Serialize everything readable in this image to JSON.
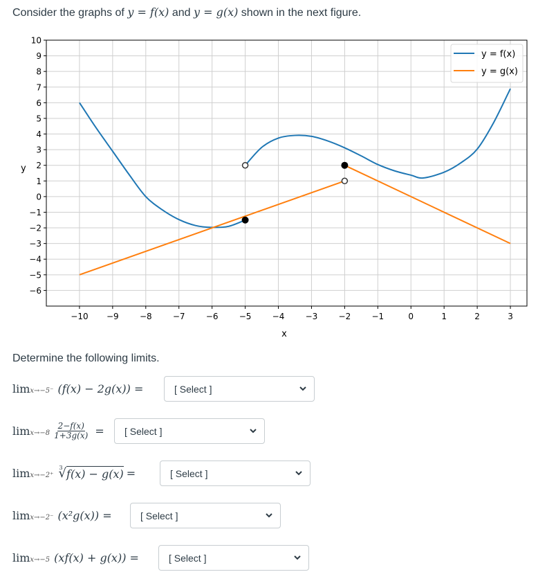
{
  "intro": {
    "prefix": "Consider the graphs of ",
    "eq1": "y = f(x)",
    "mid": " and ",
    "eq2": "y = g(x)",
    "suffix": " shown in the next figure."
  },
  "chart_data": {
    "type": "line",
    "title": "",
    "xlabel": "x",
    "ylabel": "y",
    "xlim": [
      -11,
      3.5
    ],
    "ylim": [
      -7,
      10
    ],
    "grid": true,
    "legend_position": "upper right",
    "x_ticks": [
      -10,
      -9,
      -8,
      -7,
      -6,
      -5,
      -4,
      -3,
      -2,
      -1,
      0,
      1,
      2,
      3
    ],
    "y_ticks": [
      10,
      9,
      8,
      7,
      6,
      5,
      4,
      3,
      2,
      1,
      0,
      -1,
      -2,
      -3,
      -4,
      -5,
      -6
    ],
    "x_tick_labels": [
      "−10",
      "−9",
      "−8",
      "−7",
      "−6",
      "−5",
      "−4",
      "−3",
      "−2",
      "−1",
      "0",
      "1",
      "2",
      "3"
    ],
    "y_tick_labels": [
      "10",
      "9",
      "8",
      "7",
      "6",
      "5",
      "4",
      "3",
      "2",
      "1",
      "0",
      "−1",
      "−2",
      "−3",
      "−4",
      "−5",
      "−6"
    ],
    "series": [
      {
        "name": "y = f(x)",
        "color": "#1f77b4",
        "pieces": [
          {
            "x": [
              -10,
              -9.5,
              -9,
              -8.5,
              -8,
              -7.5,
              -7,
              -6.5,
              -6,
              -5.5,
              -5
            ],
            "y": [
              6,
              4.4,
              2.9,
              1.4,
              0.0,
              -0.85,
              -1.47,
              -1.85,
              -1.97,
              -1.9,
              -1.5
            ]
          },
          {
            "x": [
              -5,
              -4.5,
              -4,
              -3.5,
              -3,
              -2.5,
              -2,
              -1.5,
              -1,
              -0.5,
              0,
              0.37,
              1,
              1.5,
              2,
              2.5,
              3
            ],
            "y": [
              2,
              3.15,
              3.74,
              3.91,
              3.85,
              3.55,
              3.12,
              2.6,
              2.05,
              1.65,
              1.37,
              1.19,
              1.56,
              2.15,
              3.04,
              4.75,
              6.9
            ]
          }
        ]
      },
      {
        "name": "y = g(x)",
        "color": "#ff7f0e",
        "pieces": [
          {
            "x": [
              -10,
              -2
            ],
            "y": [
              -5,
              1
            ]
          },
          {
            "x": [
              -2,
              3
            ],
            "y": [
              2,
              -3
            ]
          }
        ]
      }
    ],
    "markers": [
      {
        "x": -5,
        "y": 2,
        "type": "open",
        "series": "f"
      },
      {
        "x": -5,
        "y": -1.5,
        "type": "filled",
        "series": "f"
      },
      {
        "x": -2,
        "y": 2,
        "type": "filled",
        "series": "g"
      },
      {
        "x": -2,
        "y": 1,
        "type": "open",
        "series": "g"
      }
    ]
  },
  "legend": [
    {
      "label": "y = f(x)",
      "color": "#1f77b4"
    },
    {
      "label": "y = g(x)",
      "color": "#ff7f0e"
    }
  ],
  "subheading": "Determine the following limits.",
  "questions": [
    {
      "lim_sub": "x→−5⁻",
      "expr": "(f(x) − 2g(x)) =",
      "select": "[ Select ]"
    },
    {
      "lim_sub": "x→−8",
      "num": "2−f(x)",
      "den": "1+3g(x)",
      "eq": "=",
      "select": "[ Select ]"
    },
    {
      "lim_sub": "x→−2⁺",
      "root_index": "3",
      "expr": "f(x) − g(x)",
      "eq": "=",
      "select": "[ Select ]"
    },
    {
      "lim_sub": "x→−2⁻",
      "expr": "(x²g(x)) =",
      "select": "[ Select ]"
    },
    {
      "lim_sub": "x→−5",
      "expr": "(xf(x) + g(x)) =",
      "select": "[ Select ]"
    }
  ],
  "lim_word": "lim"
}
